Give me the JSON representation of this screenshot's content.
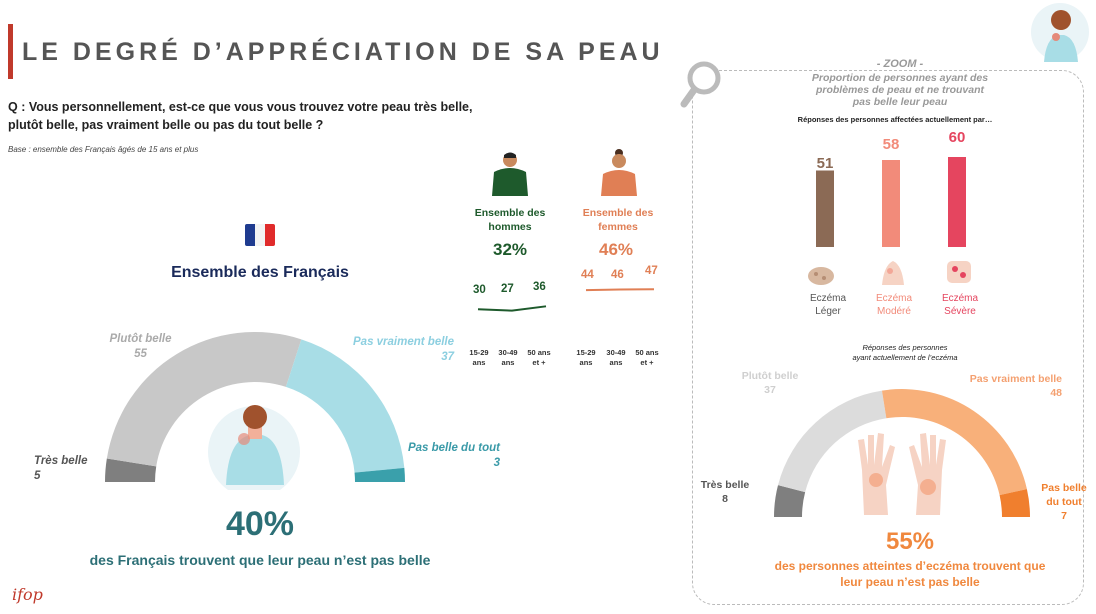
{
  "header": {
    "title": "LE DEGRÉ D’APPRÉCIATION DE SA PEAU",
    "question": "Q : Vous personnellement, est-ce que vous vous trouvez votre peau très belle, plutôt belle, pas vraiment belle ou pas du tout belle ?",
    "base": "Base : ensemble des Français âgés de 15 ans et plus"
  },
  "colors": {
    "accent": "#c0392b",
    "teal": "#2c6f76",
    "orange": "#f0883e"
  },
  "chart_data": [
    {
      "type": "donut-half",
      "title": "Ensemble des Français",
      "categories": [
        "Très belle",
        "Plutôt belle",
        "Pas vraiment belle",
        "Pas belle du tout"
      ],
      "values": [
        5,
        55,
        37,
        3
      ],
      "colors": [
        "#7f7f7f",
        "#c8c8c8",
        "#a8dde6",
        "#3aa0ab"
      ],
      "headline_value": "40%",
      "headline_text": "des Français trouvent que leur peau n’est pas belle"
    },
    {
      "type": "line",
      "groups": [
        {
          "label": "Ensemble des hommes",
          "total": "32%",
          "categories": [
            "15-29 ans",
            "30-49 ans",
            "50 ans et +"
          ],
          "values": [
            30,
            27,
            36
          ],
          "color": "#1e5a2c"
        },
        {
          "label": "Ensemble des femmes",
          "total": "46%",
          "categories": [
            "15-29 ans",
            "30-49 ans",
            "50 ans et +"
          ],
          "values": [
            44,
            46,
            47
          ],
          "color": "#e07f55"
        }
      ]
    },
    {
      "type": "bar",
      "title": "- ZOOM -",
      "subtitle": "Proportion de personnes ayant des problèmes de peau et ne trouvant pas belle leur peau",
      "note": "Réponses des personnes affectées actuellement par…",
      "categories": [
        "Eczéma Léger",
        "Eczéma Modéré",
        "Eczéma Sévère"
      ],
      "values": [
        51,
        58,
        60
      ],
      "colors": [
        "#8b6a55",
        "#f28b7a",
        "#e5455f"
      ]
    },
    {
      "type": "donut-half",
      "title": "Réponses des personnes ayant actuellement de l’eczéma",
      "categories": [
        "Très belle",
        "Plutôt belle",
        "Pas vraiment belle",
        "Pas belle du tout"
      ],
      "values": [
        8,
        37,
        48,
        7
      ],
      "colors": [
        "#7f7f7f",
        "#dcdcdc",
        "#f8b07a",
        "#f07f2e"
      ],
      "headline_value": "55%",
      "headline_text": "des personnes atteintes d’eczéma trouvent que leur peau n’est pas belle"
    }
  ],
  "labels": {
    "d1": {
      "tres": "Très belle",
      "tres_v": "5",
      "plutot": "Plutôt belle",
      "plutot_v": "55",
      "pasvrai": "Pas vraiment belle",
      "pasvrai_v": "37",
      "pastout": "Pas belle du tout",
      "pastout_v": "3"
    },
    "d2": {
      "tres": "Très belle",
      "tres_v": "8",
      "plutot": "Plutôt belle",
      "plutot_v": "37",
      "pasvrai": "Pas vraiment belle",
      "pasvrai_v": "48",
      "pastout1": "Pas belle",
      "pastout2": "du tout",
      "pastout_v": "7"
    },
    "men": {
      "l1": "Ensemble des",
      "l2": "hommes",
      "v": [
        "30",
        "27",
        "36"
      ]
    },
    "women": {
      "l1": "Ensemble  des",
      "l2": "femmes",
      "v": [
        "44",
        "46",
        "47"
      ]
    },
    "ages": [
      [
        "15-29",
        "ans"
      ],
      [
        "30-49",
        "ans"
      ],
      [
        "50 ans",
        "et +"
      ]
    ],
    "bars": [
      [
        "51",
        "Eczéma",
        "Léger"
      ],
      [
        "58",
        "Eczéma",
        "Modéré"
      ],
      [
        "60",
        "Eczéma",
        "Sévère"
      ]
    ],
    "resp2": [
      "Réponses des personnes",
      "ayant actuellement de l’eczéma"
    ],
    "zoom_sub": [
      "Proportion de personnes ayant des",
      "problèmes de peau et ne trouvant",
      "pas belle leur peau"
    ],
    "q1": "Q : Vous personnellement, est-ce que vous vous trouvez votre peau très belle,",
    "q2": "plutôt belle, pas vraiment belle ou pas du tout belle ?",
    "sub2_1": "des personnes atteintes d’eczéma trouvent que",
    "sub2_2": "leur peau n’est pas belle"
  },
  "logo": "ifop"
}
